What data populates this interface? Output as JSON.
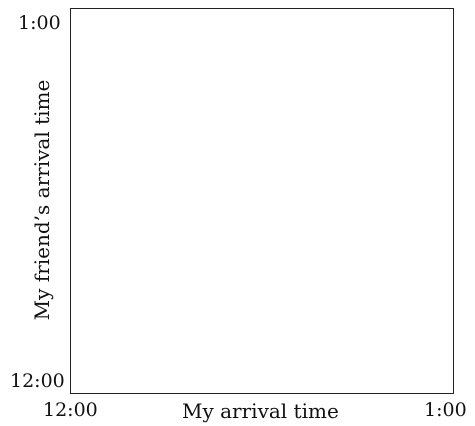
{
  "diagram": {
    "x_axis": {
      "label": "My arrival time",
      "tick_start": "12:00",
      "tick_end": "1:00"
    },
    "y_axis": {
      "label": "My friend’s arrival time",
      "tick_start": "12:00",
      "tick_end": "1:00"
    },
    "colors": {
      "frame": "#222222",
      "text": "#111111",
      "background": "#ffffff"
    }
  }
}
